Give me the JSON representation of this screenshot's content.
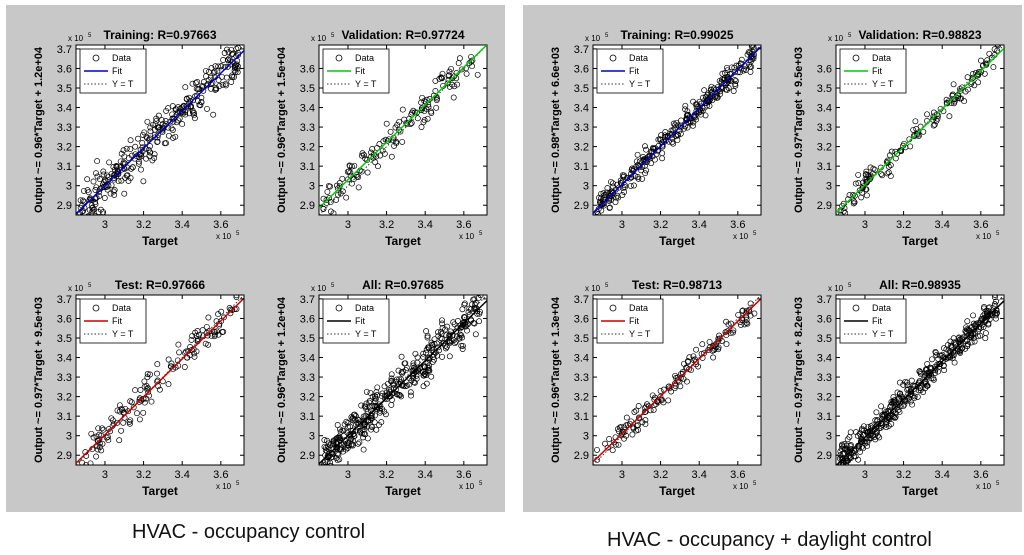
{
  "chart_data": [
    {
      "type": "scatter",
      "caption": "HVAC - occupancy control",
      "subplots": [
        {
          "title": "Training: R=0.97663",
          "ylabel": "Output ~= 0.96*Target + 1.2e+04",
          "xlabel": "Target",
          "exponent": "x 10",
          "exponent_power": "5",
          "fit_color": "#0000cc",
          "legend": [
            "Data",
            "Fit",
            "Y = T"
          ],
          "xlim": [
            2.85,
            3.72
          ],
          "ylim": [
            2.85,
            3.72
          ],
          "xticks": [
            "3",
            "3.2",
            "3.4",
            "3.6"
          ],
          "yticks": [
            "2.9",
            "3",
            "3.1",
            "3.2",
            "3.3",
            "3.4",
            "3.5",
            "3.6",
            "3.7"
          ],
          "fit": {
            "slope": 0.96,
            "intercept": 0.12
          },
          "spread": 0.05,
          "n_points": 320
        },
        {
          "title": "Validation: R=0.97724",
          "ylabel": "Output ~= 0.96*Target + 1.5e+04",
          "xlabel": "Target",
          "exponent": "x 10",
          "exponent_power": "5",
          "fit_color": "#00cc00",
          "legend": [
            "Data",
            "Fit",
            "Y = T"
          ],
          "xlim": [
            2.85,
            3.72
          ],
          "ylim": [
            2.85,
            3.72
          ],
          "xticks": [
            "3",
            "3.2",
            "3.4",
            "3.6"
          ],
          "yticks": [
            "2.9",
            "3",
            "3.1",
            "3.2",
            "3.3",
            "3.4",
            "3.5",
            "3.6"
          ],
          "fit": {
            "slope": 0.96,
            "intercept": 0.15
          },
          "spread": 0.045,
          "n_points": 150
        },
        {
          "title": "Test: R=0.97666",
          "ylabel": "Output ~= 0.97*Target + 9.5e+03",
          "xlabel": "Target",
          "exponent": "x 10",
          "exponent_power": "5",
          "fit_color": "#cc0000",
          "legend": [
            "Data",
            "Fit",
            "Y = T"
          ],
          "xlim": [
            2.85,
            3.72
          ],
          "ylim": [
            2.85,
            3.72
          ],
          "xticks": [
            "3",
            "3.2",
            "3.4",
            "3.6"
          ],
          "yticks": [
            "2.9",
            "3",
            "3.1",
            "3.2",
            "3.3",
            "3.4",
            "3.5",
            "3.6",
            "3.7"
          ],
          "fit": {
            "slope": 0.97,
            "intercept": 0.095
          },
          "spread": 0.045,
          "n_points": 150
        },
        {
          "title": "All: R=0.97685",
          "ylabel": "Output ~= 0.96*Target + 1.2e+04",
          "xlabel": "Target",
          "exponent": "x 10",
          "exponent_power": "5",
          "fit_color": "#000000",
          "legend": [
            "Data",
            "Fit",
            "Y = T"
          ],
          "xlim": [
            2.85,
            3.72
          ],
          "ylim": [
            2.85,
            3.72
          ],
          "xticks": [
            "3",
            "3.2",
            "3.4",
            "3.6"
          ],
          "yticks": [
            "2.9",
            "3",
            "3.1",
            "3.2",
            "3.3",
            "3.4",
            "3.5",
            "3.6",
            "3.7"
          ],
          "fit": {
            "slope": 0.96,
            "intercept": 0.12
          },
          "spread": 0.055,
          "n_points": 420
        }
      ]
    },
    {
      "type": "scatter",
      "caption": "HVAC - occupancy + daylight control",
      "subplots": [
        {
          "title": "Training: R=0.99025",
          "ylabel": "Output ~= 0.98*Target + 6.6e+03",
          "xlabel": "Target",
          "exponent": "x 10",
          "exponent_power": "5",
          "fit_color": "#0000cc",
          "legend": [
            "Data",
            "Fit",
            "Y = T"
          ],
          "xlim": [
            2.85,
            3.72
          ],
          "ylim": [
            2.85,
            3.72
          ],
          "xticks": [
            "3",
            "3.2",
            "3.4",
            "3.6"
          ],
          "yticks": [
            "2.9",
            "3",
            "3.1",
            "3.2",
            "3.3",
            "3.4",
            "3.5",
            "3.6",
            "3.7"
          ],
          "fit": {
            "slope": 0.98,
            "intercept": 0.066
          },
          "spread": 0.03,
          "n_points": 320
        },
        {
          "title": "Validation: R=0.98823",
          "ylabel": "Output ~= 0.97*Target + 9.5e+03",
          "xlabel": "Target",
          "exponent": "x 10",
          "exponent_power": "5",
          "fit_color": "#00cc00",
          "legend": [
            "Data",
            "Fit",
            "Y = T"
          ],
          "xlim": [
            2.85,
            3.72
          ],
          "ylim": [
            2.85,
            3.72
          ],
          "xticks": [
            "3",
            "3.2",
            "3.4",
            "3.6"
          ],
          "yticks": [
            "2.9",
            "3",
            "3.1",
            "3.2",
            "3.3",
            "3.4",
            "3.5",
            "3.6"
          ],
          "fit": {
            "slope": 0.97,
            "intercept": 0.095
          },
          "spread": 0.03,
          "n_points": 150
        },
        {
          "title": "Test: R=0.98713",
          "ylabel": "Output ~= 0.96*Target + 1.3e+04",
          "xlabel": "Target",
          "exponent": "x 10",
          "exponent_power": "5",
          "fit_color": "#cc0000",
          "legend": [
            "Data",
            "Fit",
            "Y = T"
          ],
          "xlim": [
            2.85,
            3.72
          ],
          "ylim": [
            2.85,
            3.72
          ],
          "xticks": [
            "3",
            "3.2",
            "3.4",
            "3.6"
          ],
          "yticks": [
            "2.9",
            "3",
            "3.1",
            "3.2",
            "3.3",
            "3.4",
            "3.5",
            "3.6",
            "3.7"
          ],
          "fit": {
            "slope": 0.96,
            "intercept": 0.13
          },
          "spread": 0.032,
          "n_points": 150
        },
        {
          "title": "All: R=0.98935",
          "ylabel": "Output ~= 0.97*Target + 8.2e+03",
          "xlabel": "Target",
          "exponent": "x 10",
          "exponent_power": "5",
          "fit_color": "#000000",
          "legend": [
            "Data",
            "Fit",
            "Y = T"
          ],
          "xlim": [
            2.85,
            3.72
          ],
          "ylim": [
            2.85,
            3.72
          ],
          "xticks": [
            "3",
            "3.2",
            "3.4",
            "3.6"
          ],
          "yticks": [
            "2.9",
            "3",
            "3.1",
            "3.2",
            "3.3",
            "3.4",
            "3.5",
            "3.6",
            "3.7"
          ],
          "fit": {
            "slope": 0.97,
            "intercept": 0.082
          },
          "spread": 0.035,
          "n_points": 420
        }
      ]
    }
  ]
}
